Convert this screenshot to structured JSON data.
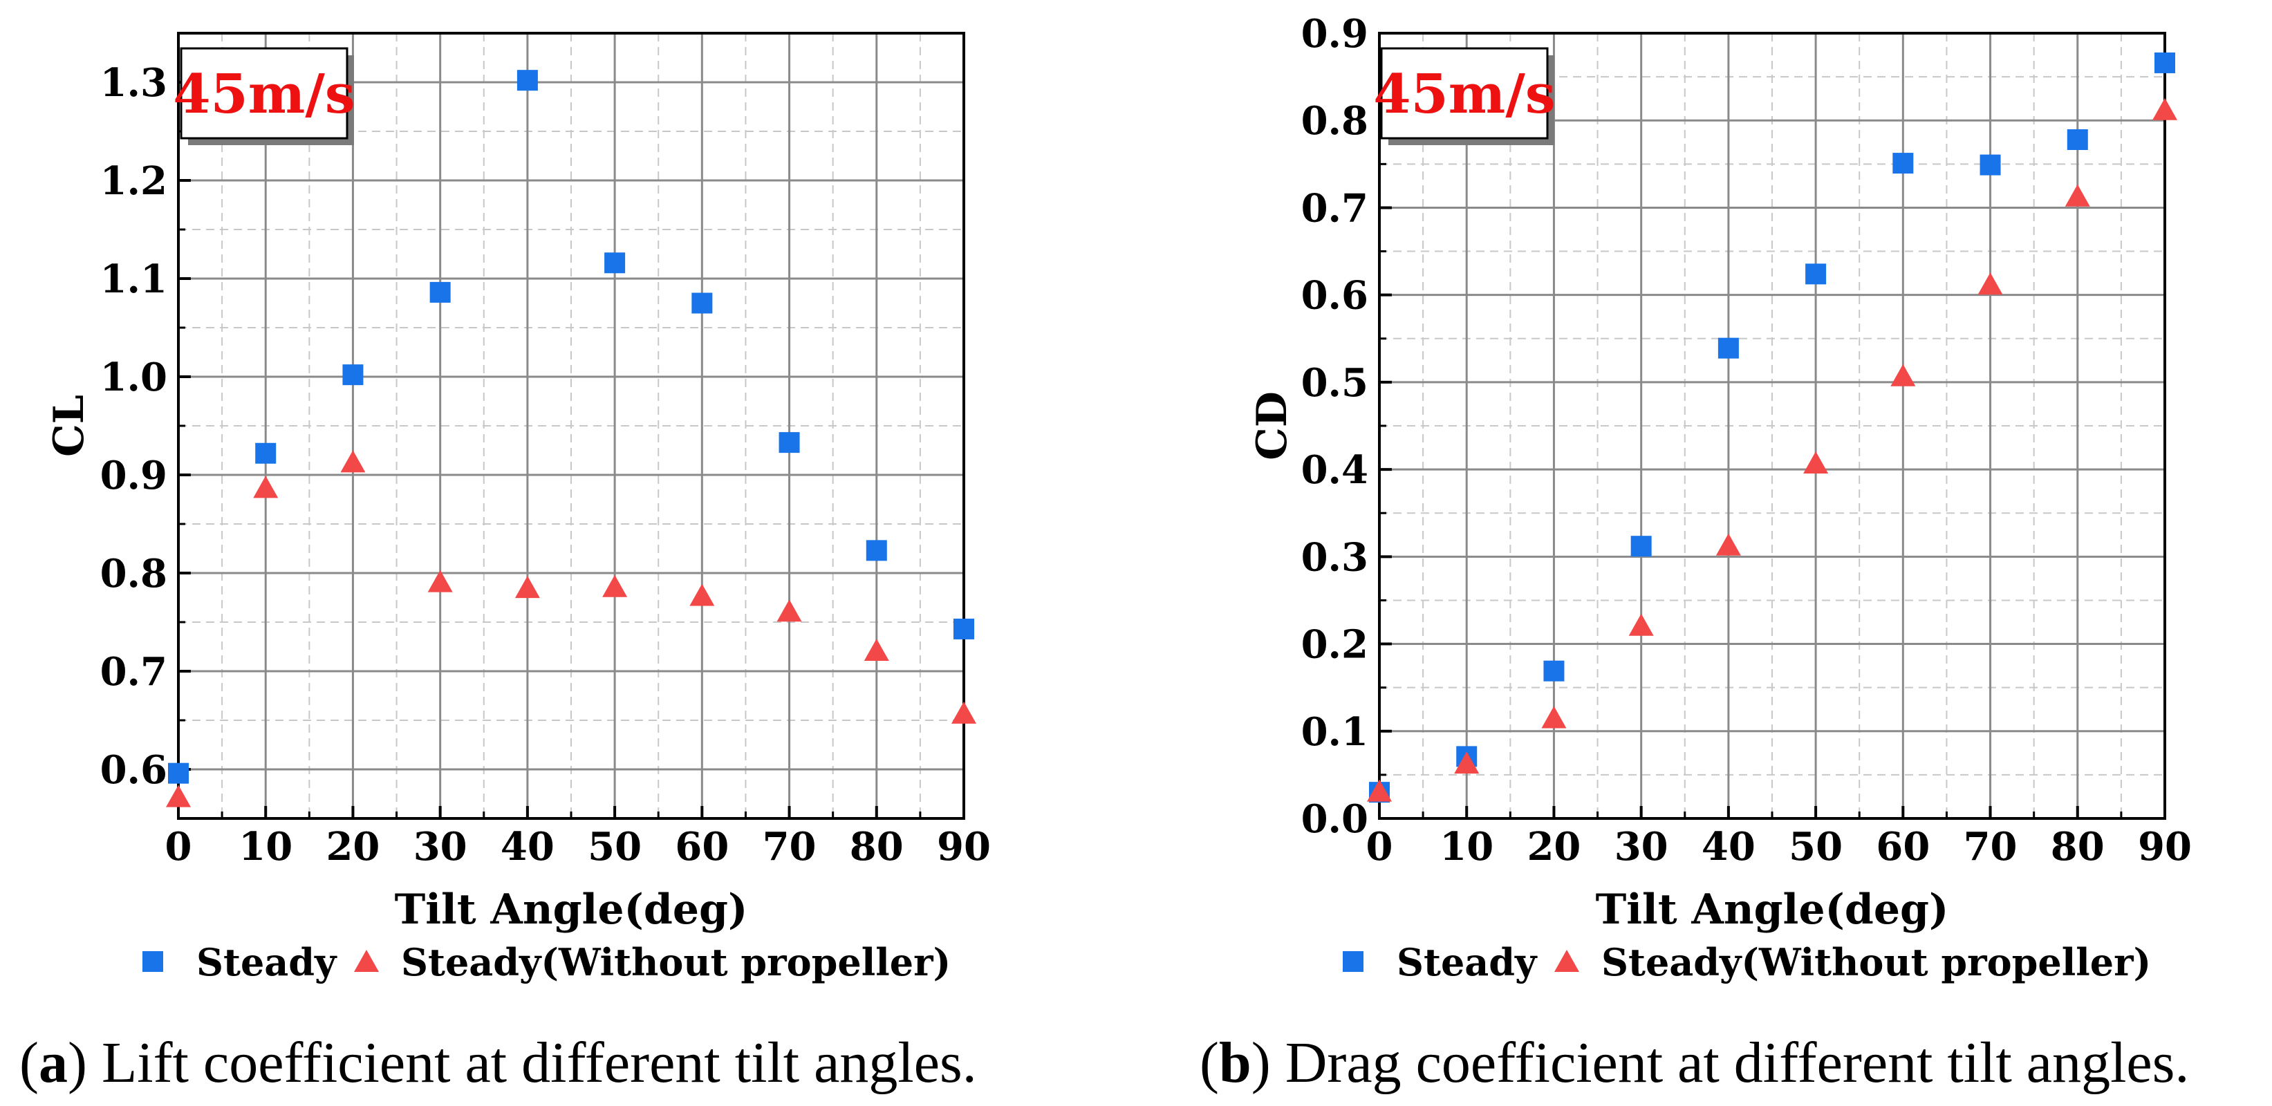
{
  "chart_data": [
    {
      "type": "scatter",
      "badge": "45m/s",
      "xlabel": "Tilt Angle(deg)",
      "ylabel": "CL",
      "xlim": [
        0,
        90
      ],
      "ylim": [
        0.55,
        1.35
      ],
      "xticks": [
        "0",
        "10",
        "20",
        "30",
        "40",
        "50",
        "60",
        "70",
        "80",
        "90"
      ],
      "yticks": [
        "0.6",
        "0.7",
        "0.8",
        "0.9",
        "1.0",
        "1.1",
        "1.2",
        "1.3"
      ],
      "grid": true,
      "legend_position": "bottom",
      "x": [
        0,
        10,
        20,
        30,
        40,
        50,
        60,
        70,
        80,
        90
      ],
      "series": [
        {
          "name": "Steady",
          "marker": "square",
          "color": "#1874e8",
          "values": [
            0.596,
            0.922,
            1.002,
            1.086,
            1.302,
            1.116,
            1.075,
            0.933,
            0.823,
            0.743
          ]
        },
        {
          "name": "Steady(Without propeller)",
          "marker": "triangle",
          "color": "#f24848",
          "values": [
            0.571,
            0.886,
            0.912,
            0.79,
            0.784,
            0.785,
            0.776,
            0.76,
            0.72,
            0.656
          ]
        }
      ],
      "caption_label": "a",
      "caption_text": "Lift coefficient at different tilt angles."
    },
    {
      "type": "scatter",
      "badge": "45m/s",
      "xlabel": "Tilt Angle(deg)",
      "ylabel": "CD",
      "xlim": [
        0,
        90
      ],
      "ylim": [
        0.0,
        0.9
      ],
      "xticks": [
        "0",
        "10",
        "20",
        "30",
        "40",
        "50",
        "60",
        "70",
        "80",
        "90"
      ],
      "yticks": [
        "0.0",
        "0.1",
        "0.2",
        "0.3",
        "0.4",
        "0.5",
        "0.6",
        "0.7",
        "0.8",
        "0.9"
      ],
      "grid": true,
      "legend_position": "bottom",
      "x": [
        0,
        10,
        20,
        30,
        40,
        50,
        60,
        70,
        80,
        90
      ],
      "series": [
        {
          "name": "Steady",
          "marker": "square",
          "color": "#1874e8",
          "values": [
            0.03,
            0.071,
            0.169,
            0.312,
            0.539,
            0.624,
            0.751,
            0.749,
            0.778,
            0.866
          ]
        },
        {
          "name": "Steady(Without propeller)",
          "marker": "triangle",
          "color": "#f24848",
          "values": [
            0.03,
            0.062,
            0.114,
            0.22,
            0.312,
            0.406,
            0.506,
            0.611,
            0.712,
            0.811
          ]
        }
      ],
      "caption_label": "b",
      "caption_text": "Drag coefficient at different tilt angles."
    }
  ]
}
